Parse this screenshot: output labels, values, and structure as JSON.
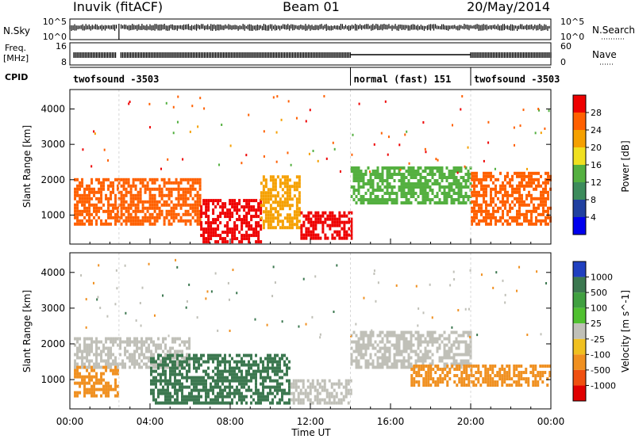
{
  "header": {
    "station": "Inuvik (fitACF)",
    "beam": "Beam 01",
    "date": "20/May/2014"
  },
  "strips": {
    "nsky_label": "N.Sky",
    "nsky_ticks": [
      "10^5",
      "10^0"
    ],
    "nsearch_label": "N.Search",
    "nsearch_ticks": [
      "10^5",
      "10^0"
    ],
    "freq_label_1": "Freq.",
    "freq_label_2": "[MHz]",
    "freq_ticks": [
      "16",
      "8"
    ],
    "nave_label": "Nave",
    "nave_ticks": [
      "60",
      "0"
    ],
    "cpid_label": "CPID",
    "cpid_segments": [
      {
        "name": "twofsound -3503",
        "start_hour": 0,
        "end_hour": 14
      },
      {
        "name": "normal (fast) 151",
        "start_hour": 14,
        "end_hour": 20
      },
      {
        "name": "twofsound -3503",
        "start_hour": 20,
        "end_hour": 24
      }
    ]
  },
  "chart_data": [
    {
      "type": "heatmap",
      "parameter": "Power",
      "ylabel": "Slant Range [km]",
      "xlabel": "",
      "xlim_hours": [
        0,
        24
      ],
      "ylim_km": [
        180,
        4550
      ],
      "y_ticks": [
        1000,
        2000,
        3000,
        4000
      ],
      "colorbar_label": "Power [dB]",
      "colorbar_ticks": [
        "4",
        "8",
        "12",
        "16",
        "20",
        "24",
        "28"
      ],
      "colorbar_colors": [
        "#0000ee",
        "#2040a0",
        "#3d8c5c",
        "#54b040",
        "#f0e020",
        "#f5a000",
        "#ff6000",
        "#ee0000"
      ],
      "echo_bands": [
        {
          "start_hour": 0.2,
          "end_hour": 2.4,
          "range_km": [
            700,
            2000
          ],
          "power_db": 24
        },
        {
          "start_hour": 2.4,
          "end_hour": 6.5,
          "range_km": [
            700,
            2000
          ],
          "power_db": 22
        },
        {
          "start_hour": 6.5,
          "end_hour": 9.5,
          "range_km": [
            200,
            1400
          ],
          "power_db": 28
        },
        {
          "start_hour": 9.5,
          "end_hour": 11.5,
          "range_km": [
            600,
            2100
          ],
          "power_db": 20
        },
        {
          "start_hour": 11.5,
          "end_hour": 14.0,
          "range_km": [
            300,
            1100
          ],
          "power_db": 26
        },
        {
          "start_hour": 14.0,
          "end_hour": 20.0,
          "range_km": [
            1300,
            2300
          ],
          "power_db": 10
        },
        {
          "start_hour": 20.0,
          "end_hour": 24.0,
          "range_km": [
            700,
            2200
          ],
          "power_db": 22
        }
      ]
    },
    {
      "type": "heatmap",
      "parameter": "Velocity",
      "ylabel": "Slant Range [km]",
      "xlabel": "Time UT",
      "xlim_hours": [
        0,
        24
      ],
      "ylim_km": [
        180,
        4550
      ],
      "y_ticks": [
        1000,
        2000,
        3000,
        4000
      ],
      "x_ticks": [
        "00:00",
        "04:00",
        "08:00",
        "12:00",
        "16:00",
        "20:00",
        "00:00"
      ],
      "colorbar_label": "Velocity [m s^-1]",
      "colorbar_ticks": [
        "1000",
        "500",
        "100",
        "25",
        "-25",
        "-100",
        "-500",
        "-1000"
      ],
      "colorbar_colors": [
        "#2040c0",
        "#3c7850",
        "#40a040",
        "#50c030",
        "#c0c0b8",
        "#f0c020",
        "#f09020",
        "#f05010",
        "#e00000"
      ],
      "echo_bands": [
        {
          "start_hour": 0.2,
          "end_hour": 2.4,
          "range_km": [
            500,
            1300
          ],
          "velocity_ms": -300
        },
        {
          "start_hour": 0.2,
          "end_hour": 6.0,
          "range_km": [
            1300,
            2100
          ],
          "velocity_ms": 0
        },
        {
          "start_hour": 4.0,
          "end_hour": 11.0,
          "range_km": [
            300,
            1700
          ],
          "velocity_ms": 200
        },
        {
          "start_hour": 11.0,
          "end_hour": 14.0,
          "range_km": [
            300,
            1000
          ],
          "velocity_ms": 0
        },
        {
          "start_hour": 14.0,
          "end_hour": 20.0,
          "range_km": [
            1300,
            2300
          ],
          "velocity_ms": 0
        },
        {
          "start_hour": 17.0,
          "end_hour": 24.0,
          "range_km": [
            800,
            1400
          ],
          "velocity_ms": -300
        }
      ]
    }
  ]
}
